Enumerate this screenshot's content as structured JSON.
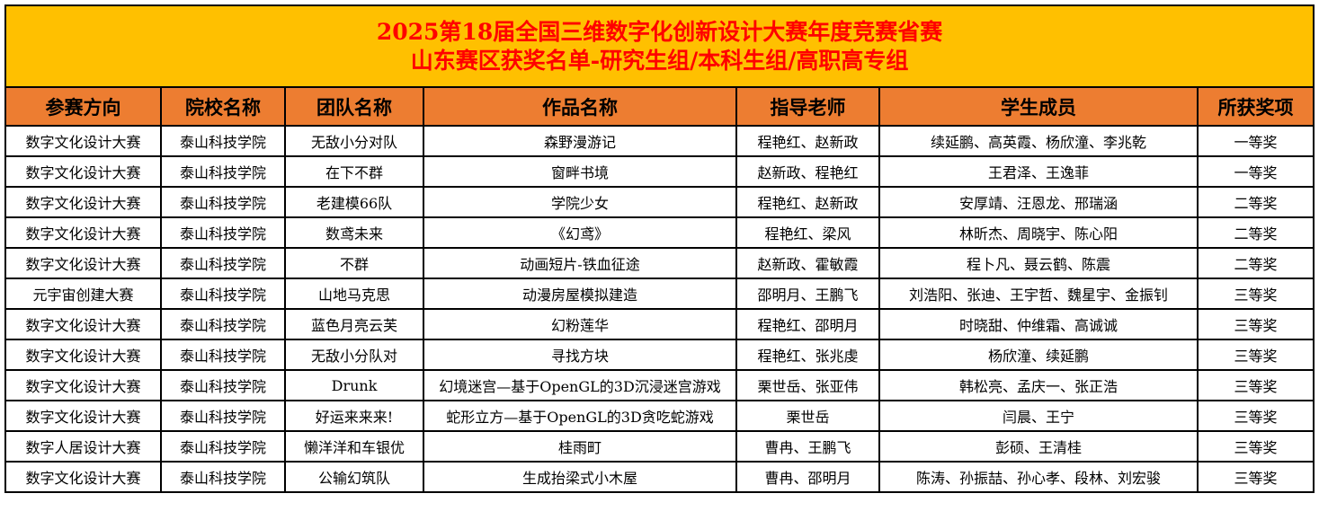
{
  "title": {
    "line1": "2025第18届全国三维数字化创新设计大赛年度竞赛省赛",
    "line2": "山东赛区获奖名单-研究生组/本科生组/高职高专组"
  },
  "colors": {
    "title_bg": "#FFC000",
    "title_text": "#FF0000",
    "header_bg": "#ED7D31"
  },
  "headers": [
    "参赛方向",
    "院校名称",
    "团队名称",
    "作品名称",
    "指导老师",
    "学生成员",
    "所获奖项"
  ],
  "rows": [
    [
      "数字文化设计大赛",
      "泰山科技学院",
      "无敌小分对队",
      "森野漫游记",
      "程艳红、赵新政",
      "续延鹏、高英霞、杨欣潼、李兆乾",
      "一等奖"
    ],
    [
      "数字文化设计大赛",
      "泰山科技学院",
      "在下不群",
      "窗畔书境",
      "赵新政、程艳红",
      "王君泽、王逸菲",
      "一等奖"
    ],
    [
      "数字文化设计大赛",
      "泰山科技学院",
      "老建模66队",
      "学院少女",
      "程艳红、赵新政",
      "安厚靖、汪恩龙、邢瑞涵",
      "二等奖"
    ],
    [
      "数字文化设计大赛",
      "泰山科技学院",
      "数鸢未来",
      "《幻鸢》",
      "程艳红、梁风",
      "林昕杰、周晓宇、陈心阳",
      "二等奖"
    ],
    [
      "数字文化设计大赛",
      "泰山科技学院",
      "不群",
      "动画短片-铁血征途",
      "赵新政、霍敏霞",
      "程卜凡、聂云鹤、陈震",
      "二等奖"
    ],
    [
      "元宇宙创建大赛",
      "泰山科技学院",
      "山地马克思",
      "动漫房屋模拟建造",
      "邵明月、王鹏飞",
      "刘浩阳、张迪、王宇哲、魏星宇、金振钊",
      "三等奖"
    ],
    [
      "数字文化设计大赛",
      "泰山科技学院",
      "蓝色月亮云芙",
      "幻粉莲华",
      "程艳红、邵明月",
      "时晓甜、仲维霜、高诚诚",
      "三等奖"
    ],
    [
      "数字文化设计大赛",
      "泰山科技学院",
      "无敌小分队对",
      "寻找方块",
      "程艳红、张兆虔",
      "杨欣潼、续延鹏",
      "三等奖"
    ],
    [
      "数字文化设计大赛",
      "泰山科技学院",
      "Drunk",
      "幻境迷宫—基于OpenGL的3D沉浸迷宫游戏",
      "栗世岳、张亚伟",
      "韩松亮、孟庆一、张正浩",
      "三等奖"
    ],
    [
      "数字文化设计大赛",
      "泰山科技学院",
      "好运来来来!",
      "蛇形立方—基于OpenGL的3D贪吃蛇游戏",
      "栗世岳",
      "闫晨、王宁",
      "三等奖"
    ],
    [
      "数字人居设计大赛",
      "泰山科技学院",
      "懒洋洋和车银优",
      "桂雨町",
      "曹冉、王鹏飞",
      "彭硕、王清桂",
      "三等奖"
    ],
    [
      "数字文化设计大赛",
      "泰山科技学院",
      "公输幻筑队",
      "生成抬梁式小木屋",
      "曹冉、邵明月",
      "陈涛、孙振喆、孙心孝、段林、刘宏骏",
      "三等奖"
    ]
  ]
}
